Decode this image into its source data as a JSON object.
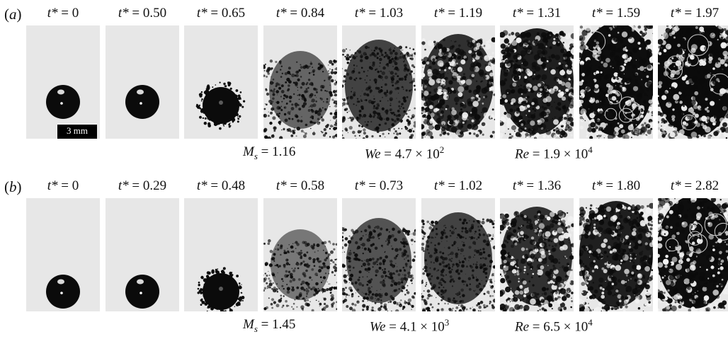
{
  "rows": [
    {
      "label": "a",
      "times": [
        "0",
        "0.50",
        "0.65",
        "0.84",
        "1.03",
        "1.19",
        "1.31",
        "1.59",
        "1.97"
      ],
      "params": {
        "ms_label": "M",
        "ms_sub": "s",
        "ms_value": "= 1.16",
        "we_label": "We",
        "we_value": "= 4.7 × 10",
        "we_exp": "2",
        "re_label": "Re",
        "re_value": "= 1.9 × 10",
        "re_exp": "4"
      },
      "scale_bar": "3 mm"
    },
    {
      "label": "b",
      "times": [
        "0",
        "0.29",
        "0.48",
        "0.58",
        "0.73",
        "1.02",
        "1.36",
        "1.80",
        "2.82"
      ],
      "params": {
        "ms_label": "M",
        "ms_sub": "s",
        "ms_value": "= 1.45",
        "we_label": "We",
        "we_value": "= 4.1 × 10",
        "we_exp": "3",
        "re_label": "Re",
        "re_value": "= 6.5 × 10",
        "re_exp": "4"
      }
    }
  ],
  "time_symbol": "t*",
  "colors": {
    "background": "#e7e7e7",
    "droplet": "#0b0b0b",
    "text": "#111111"
  }
}
